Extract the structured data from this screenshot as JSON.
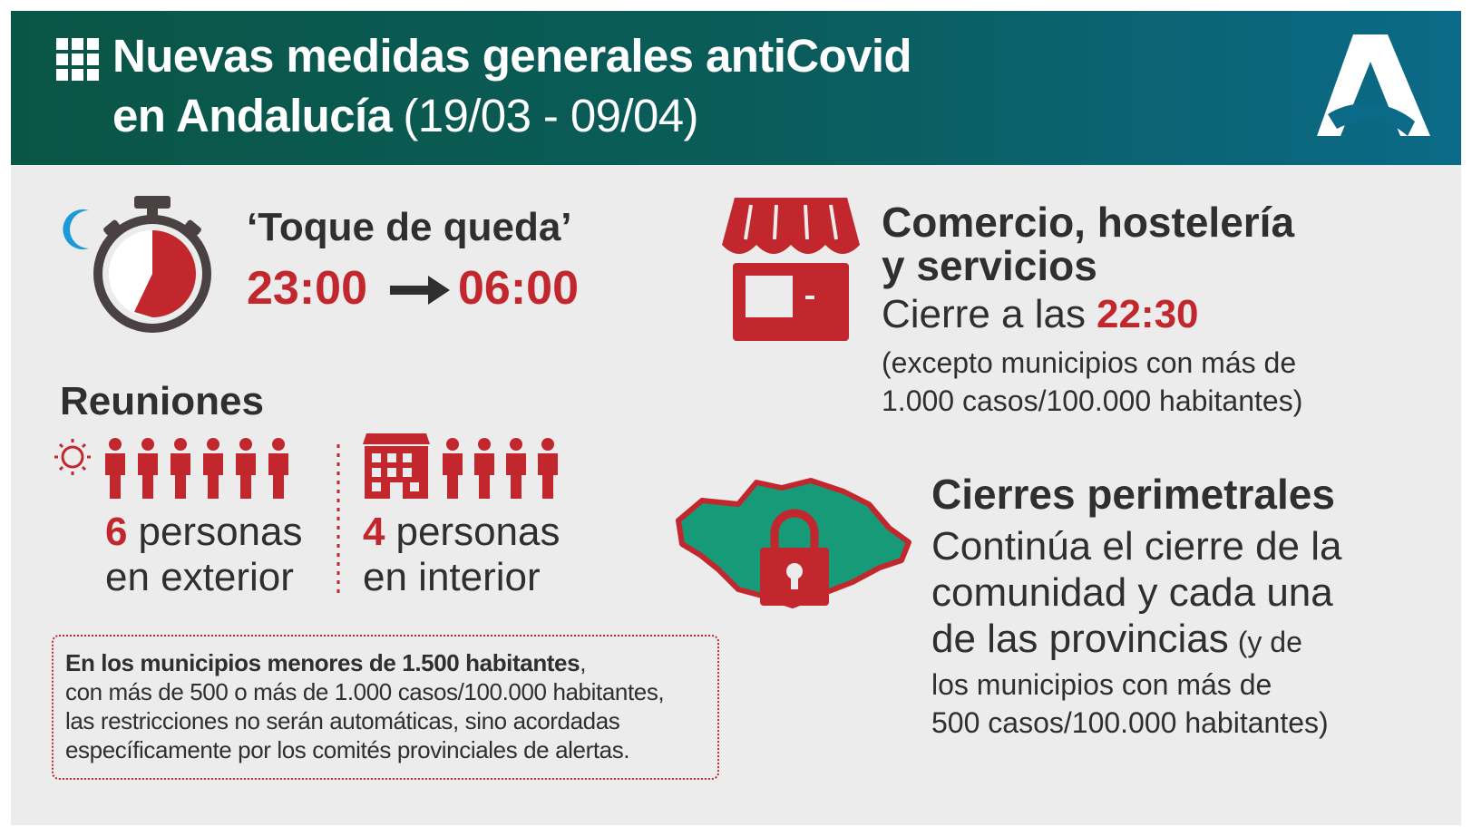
{
  "header": {
    "title_line1": "Nuevas medidas generales antiCovid",
    "title_line2": "en Andalucía",
    "dates": "(19/03 - 09/04)"
  },
  "curfew": {
    "title": "‘Toque de queda’",
    "start": "23:00",
    "end": "06:00"
  },
  "commerce": {
    "title_line1": "Comercio, hostelería",
    "title_line2": "y servicios",
    "closing_prefix": "Cierre a las",
    "closing_time": "22:30",
    "exception_line1": "(excepto municipios con más de",
    "exception_line2": "1.000 casos/100.000 habitantes)"
  },
  "meetings": {
    "title": "Reuniones",
    "outdoor": {
      "number": "6",
      "text_line1": "personas",
      "text_line2": "en exterior"
    },
    "indoor": {
      "number": "4",
      "text_line1": "personas",
      "text_line2": "en interior"
    }
  },
  "note": {
    "bold": "En los municipios menores de 1.500 habitantes",
    "bold_suffix": ",",
    "lines": [
      "con más de 500 o más de 1.000 casos/100.000 habitantes,",
      "las restricciones no serán automáticas, sino acordadas",
      "específicamente por los comités provinciales de alertas."
    ]
  },
  "perimeter": {
    "title": "Cierres perimetrales",
    "lines": [
      "Continúa el cierre de la",
      "comunidad y cada una",
      "de las provincias"
    ],
    "small_suffix": "(y de",
    "small_lines": [
      "los municipios con más de",
      "500 casos/100.000 habitantes)"
    ]
  }
}
